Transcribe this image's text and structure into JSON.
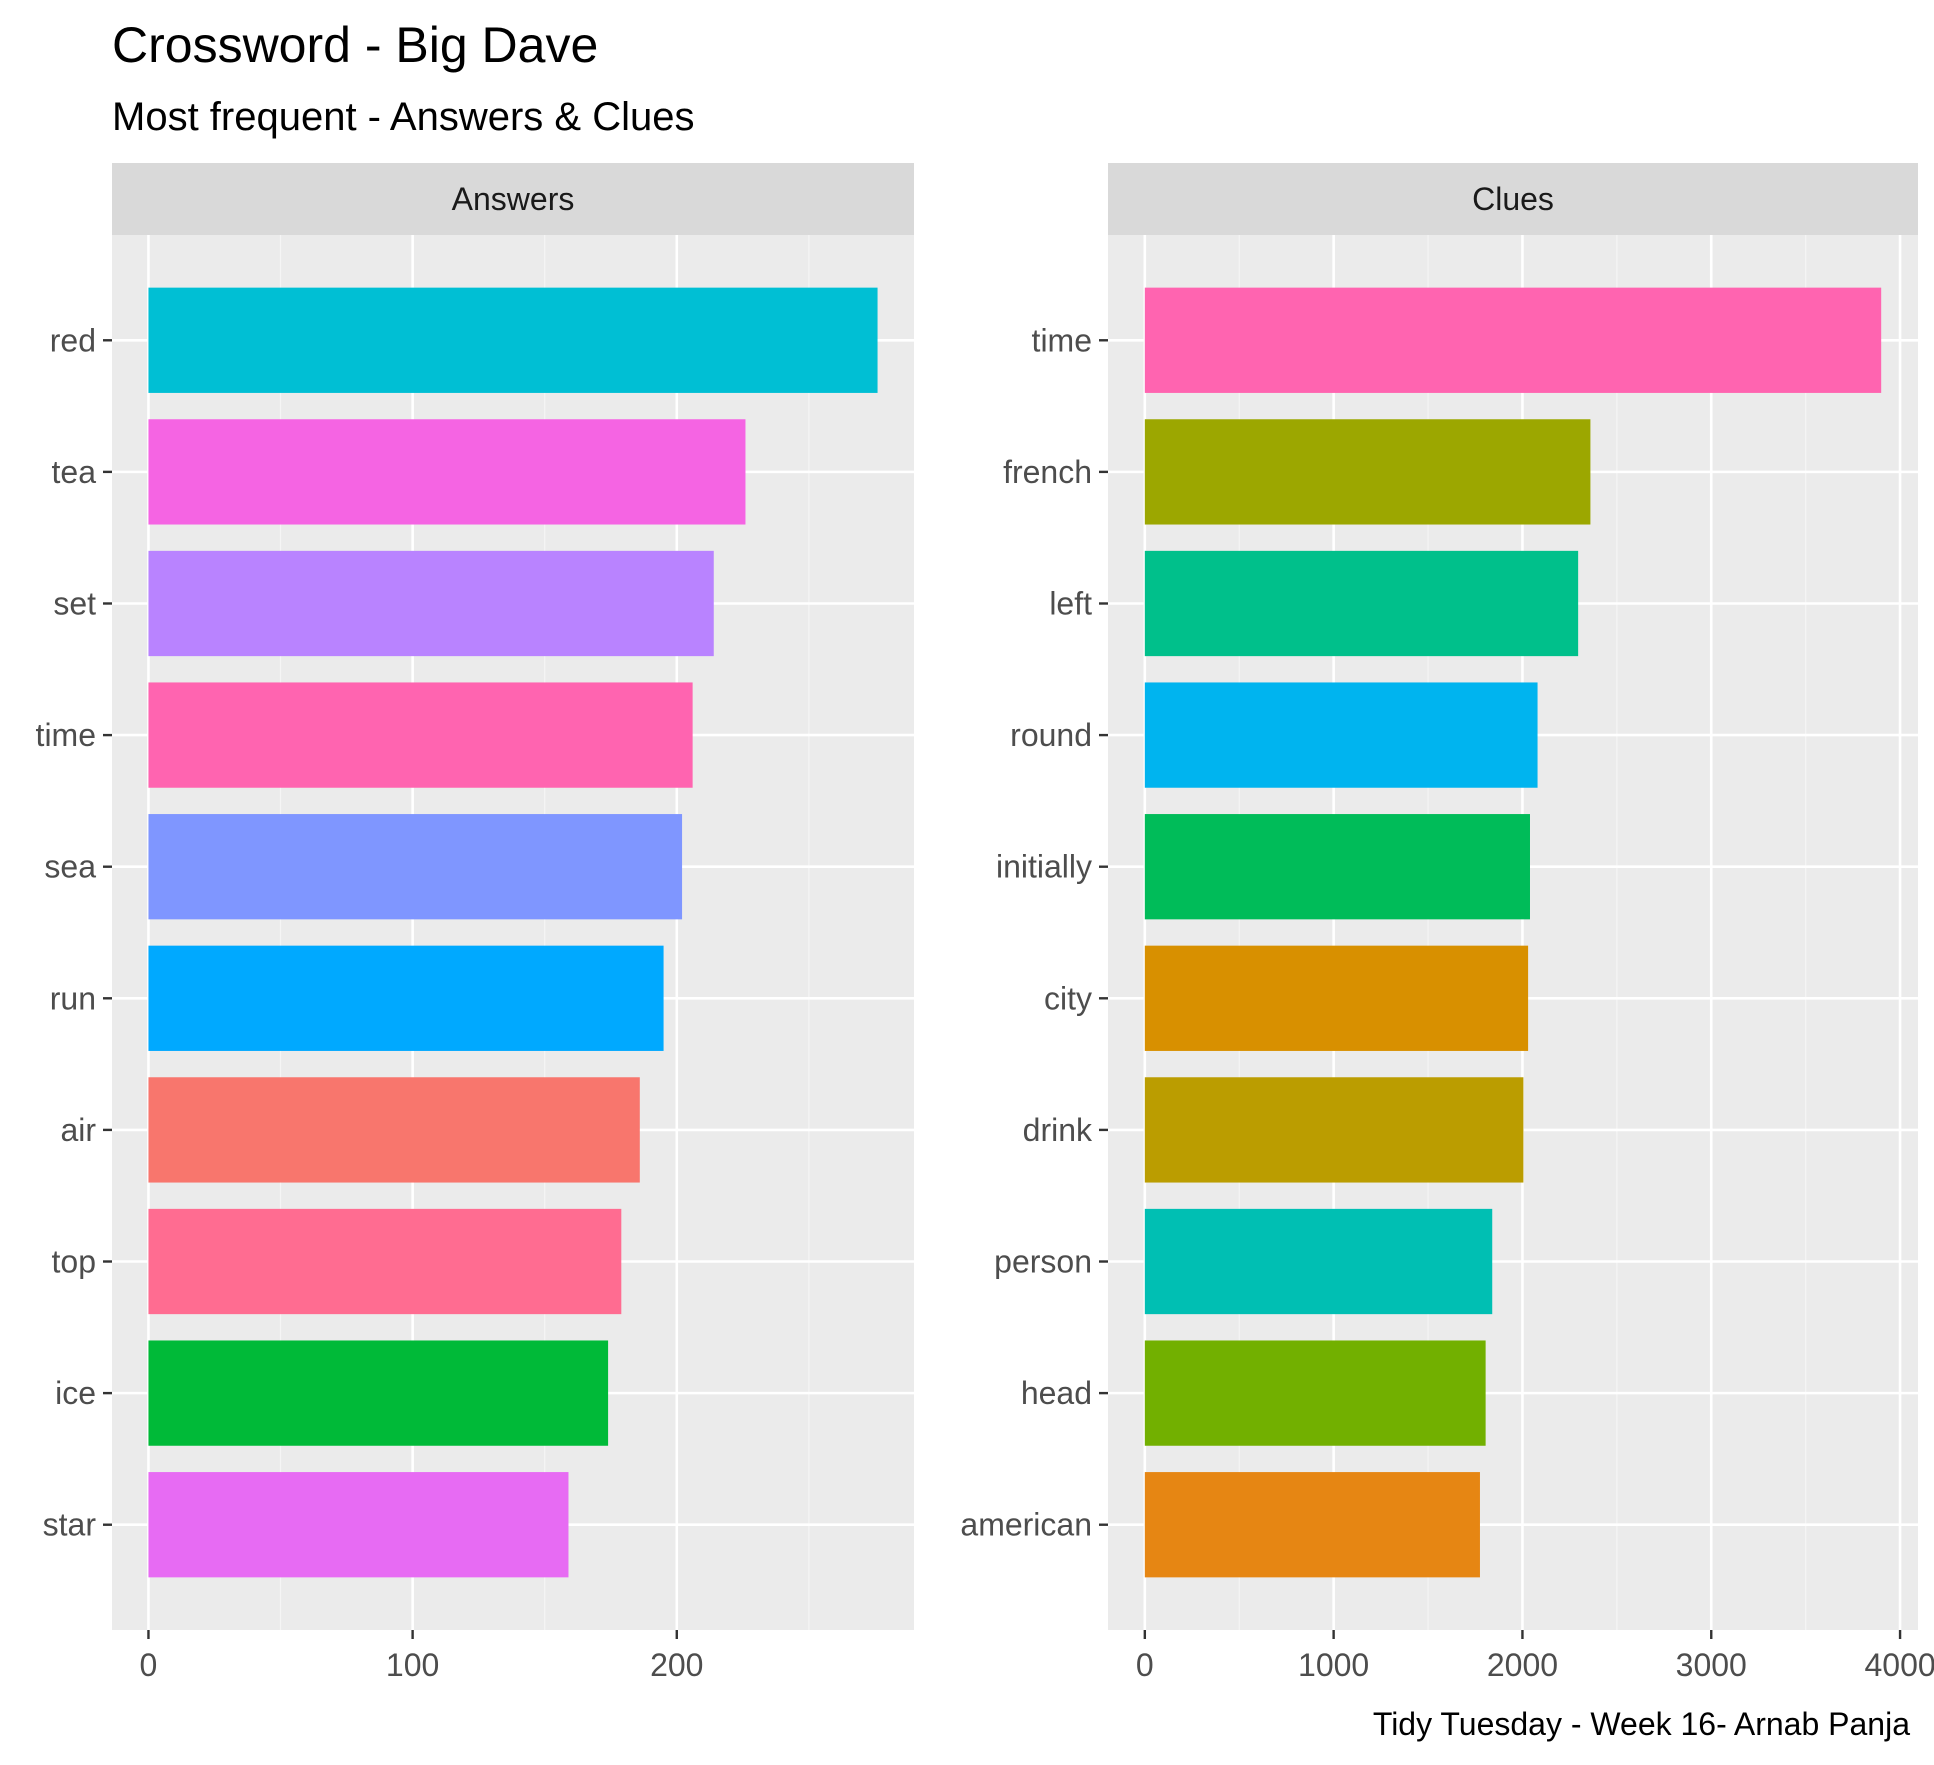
{
  "chart_data": {
    "type": "bar",
    "title": "Crossword - Big Dave",
    "subtitle": "Most frequent - Answers & Clues",
    "caption": "Tidy Tuesday - Week 16- Arnab Panja",
    "orientation": "horizontal",
    "grid": true,
    "legend": "none",
    "panels": [
      {
        "strip": "Answers",
        "categories": [
          "red",
          "tea",
          "set",
          "time",
          "sea",
          "run",
          "air",
          "top",
          "ice",
          "star"
        ],
        "values": [
          276,
          226,
          214,
          206,
          202,
          195,
          186,
          179,
          174,
          159
        ],
        "colors": [
          "#00BFD4",
          "#F564E3",
          "#B983FF",
          "#FF64B0",
          "#7F96FF",
          "#00A9FF",
          "#F8766D",
          "#FF6C91",
          "#00BA38",
          "#E76BF3"
        ],
        "xlim": [
          -13.8,
          289.8
        ],
        "xticks": [
          0,
          100,
          200
        ],
        "minor_xticks": [
          50,
          150,
          250
        ]
      },
      {
        "strip": "Clues",
        "categories": [
          "time",
          "french",
          "left",
          "round",
          "initially",
          "city",
          "drink",
          "person",
          "head",
          "american"
        ],
        "values": [
          3900,
          2360,
          2295,
          2080,
          2040,
          2030,
          2005,
          1840,
          1805,
          1775
        ],
        "colors": [
          "#FF64B0",
          "#9CA700",
          "#00C08B",
          "#00B4EF",
          "#00BC59",
          "#D89000",
          "#BB9D00",
          "#00BFB3",
          "#72B000",
          "#E68613"
        ],
        "xlim": [
          -195,
          4095
        ],
        "xticks": [
          0,
          1000,
          2000,
          3000,
          4000
        ],
        "minor_xticks": [
          500,
          1500,
          2500,
          3500
        ]
      }
    ]
  }
}
